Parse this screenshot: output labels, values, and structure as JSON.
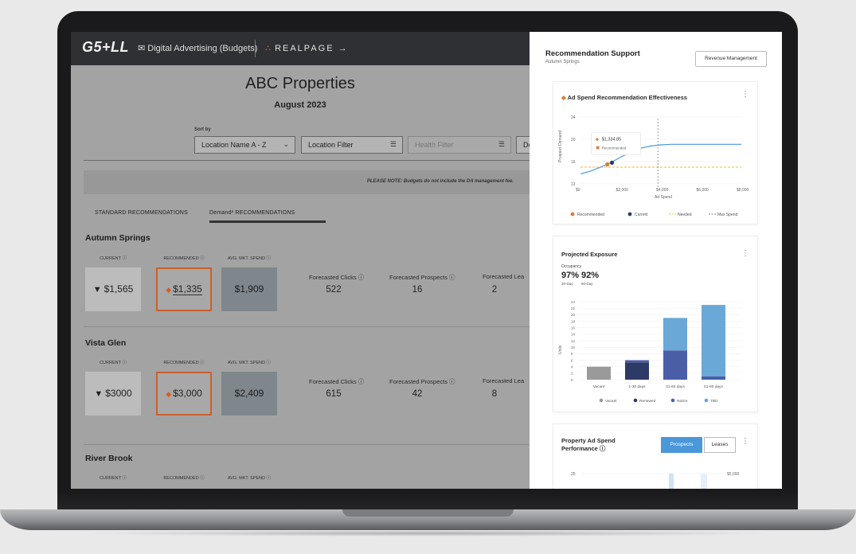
{
  "header": {
    "logo": "G5+LL",
    "product_icon": "megaphone-icon",
    "product": "Digital Advertising (Budgets)",
    "partner": "REALPAGE",
    "partner_arrow": "→"
  },
  "page": {
    "title": "ABC Properties",
    "period": "August 2023"
  },
  "filters": {
    "sort_by_label": "Sort by",
    "sort_value": "Location Name A - Z",
    "location_filter": "Location Filter",
    "health_filter": "Health Filter",
    "cut_label": "Do"
  },
  "note": "PLEASE NOTE: Budgets do not include the DA management fee.",
  "tabs": [
    {
      "label": "STANDARD RECOMMENDATIONS",
      "active": false
    },
    {
      "label": "Demand² RECOMMENDATIONS",
      "active": true
    }
  ],
  "column_labels": {
    "current": "CURRENT ⓘ",
    "recommended": "RECOMMENDED ⓘ",
    "avg": "AVG. MKT. SPEND ⓘ"
  },
  "metric_labels": {
    "clicks": "Forecasted Clicks ⓘ",
    "prospects": "Forecasted Prospects ⓘ",
    "leases": "Forecasted Lea"
  },
  "locations": [
    {
      "name": "Autumn Springs",
      "current": "$1,565",
      "recommended": "$1,335",
      "avg": "$1,909",
      "clicks": "522",
      "prospects": "16",
      "leases": "2"
    },
    {
      "name": "Vista Glen",
      "current": "$3000",
      "recommended": "$3,000",
      "avg": "$2,409",
      "clicks": "615",
      "prospects": "42",
      "leases": "8"
    },
    {
      "name": "River Brook"
    }
  ],
  "panel": {
    "title": "Recommendation Support",
    "subtitle": "Autumn Springs",
    "button": "Revenue Management",
    "effectiveness": {
      "title": "Ad Spend Recommendation Effectiveness",
      "tooltip_value": "$1,334.85",
      "tooltip_label": "Recommended",
      "ylabel": "Prospect Demand",
      "xlabel": "Ad Spend",
      "yticks": [
        "24",
        "20",
        "16",
        "12"
      ],
      "xticks": [
        "$0",
        "$2,000",
        "$4,000",
        "$6,000",
        "$8,000"
      ],
      "legend": [
        "Recommended",
        "Current",
        "Needed",
        "Max Spend"
      ],
      "colors": {
        "recommended": "#e07a3a",
        "current": "#2e3a66",
        "needed": "#f0b93c",
        "max": "#888888",
        "curve": "#4a97d9"
      }
    },
    "exposure": {
      "title": "Projected Exposure",
      "occupancy_label": "Occupancy",
      "occ30": "97%",
      "occ30_label": "30-Day",
      "occ60": "92%",
      "occ60_label": "60-Day",
      "ylabel": "Units",
      "yticks": [
        "24",
        "22",
        "20",
        "18",
        "16",
        "14",
        "12",
        "10",
        "8",
        "6",
        "4",
        "2",
        "0"
      ],
      "legend": [
        "Vacant",
        "Renewed",
        "Notice",
        "TBD"
      ],
      "colors": {
        "vacant": "#9a9a9a",
        "renewed": "#2e3a66",
        "notice": "#4a5ea8",
        "tbd": "#6aa8d8"
      }
    },
    "performance": {
      "title": "Property Ad Spend",
      "title2": "Performance ⓘ",
      "seg_on": "Prospects",
      "seg_off": "Leases",
      "ytick_left": "25",
      "ytick_right": "$5,000"
    }
  },
  "chart_data": [
    {
      "type": "line",
      "title": "Ad Spend Recommendation Effectiveness",
      "xlabel": "Ad Spend",
      "ylabel": "Prospect Demand",
      "xlim": [
        0,
        8000
      ],
      "ylim": [
        12,
        24
      ],
      "series": [
        {
          "name": "Recommended",
          "x": [
            1334.85
          ],
          "y": [
            15.5
          ]
        },
        {
          "name": "Current",
          "x": [
            1565
          ],
          "y": [
            15.8
          ]
        },
        {
          "name": "Needed",
          "x": [
            0,
            8000
          ],
          "y": [
            15,
            15
          ]
        },
        {
          "name": "Max Spend",
          "x": [
            3850,
            3850
          ],
          "y": [
            12,
            24
          ]
        }
      ],
      "curve": {
        "x": [
          0,
          500,
          1000,
          1500,
          2000,
          2500,
          3000,
          3500,
          4000,
          4500,
          5000,
          6000,
          7000,
          8000
        ],
        "y": [
          13.8,
          14.3,
          15.0,
          15.8,
          16.8,
          17.7,
          18.4,
          18.8,
          19.0,
          19.1,
          19.1,
          19.1,
          19.1,
          19.1
        ]
      },
      "legend_position": "bottom"
    },
    {
      "type": "bar",
      "title": "Projected Exposure",
      "ylabel": "Units",
      "ylim": [
        0,
        24
      ],
      "categories": [
        "Vacant",
        "1-30 days",
        "31-60 days",
        "61-90 days"
      ],
      "series": [
        {
          "name": "Vacant",
          "values": [
            4,
            0,
            0,
            0
          ]
        },
        {
          "name": "Renewed",
          "values": [
            0,
            5.3,
            0,
            0
          ]
        },
        {
          "name": "Notice",
          "values": [
            0,
            0.7,
            9,
            1
          ]
        },
        {
          "name": "TBD",
          "values": [
            0,
            0,
            10,
            22
          ]
        }
      ],
      "stacked": true,
      "legend_position": "bottom"
    }
  ]
}
